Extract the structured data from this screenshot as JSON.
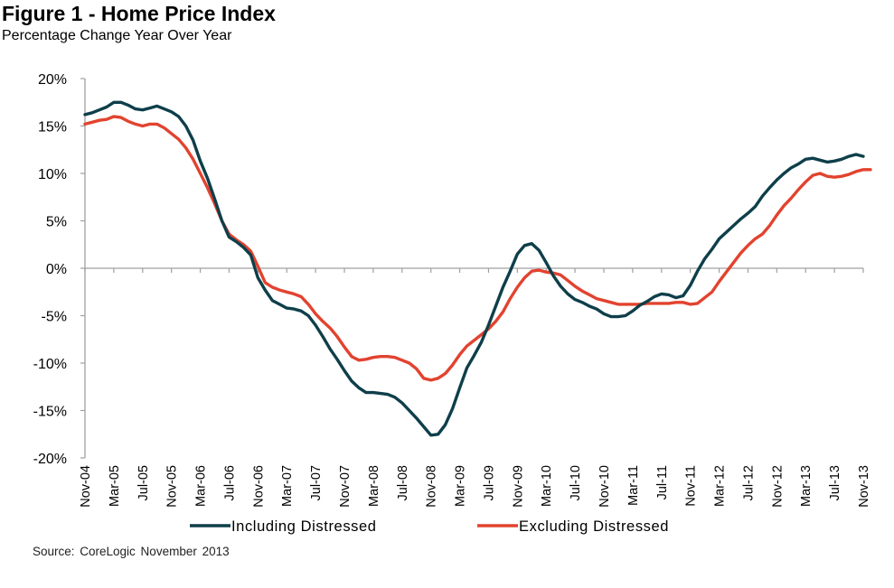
{
  "header": {
    "title": "Figure 1 - Home Price Index",
    "subtitle": "Percentage Change Year Over Year"
  },
  "footer": {
    "source": "Source: CoreLogic  November  2013"
  },
  "colors": {
    "including": "#0e3f4a",
    "excluding": "#e2432f",
    "axis": "#a0a0a0"
  },
  "chart_data": {
    "type": "line",
    "title": "Figure 1 - Home Price Index",
    "subtitle": "Percentage Change Year Over Year",
    "xlabel": "",
    "ylabel": "",
    "ylim": [
      -20,
      20
    ],
    "yticks": [
      20,
      15,
      10,
      5,
      0,
      -5,
      -10,
      -15,
      -20
    ],
    "ytick_labels": [
      "20%",
      "15%",
      "10%",
      "5%",
      "0%",
      "-5%",
      "-10%",
      "-15%",
      "-20%"
    ],
    "x_start": "Nov-04",
    "x_end": "Nov-13",
    "x_frequency": "monthly",
    "xtick_labels": [
      "Nov-04",
      "Mar-05",
      "Jul-05",
      "Nov-05",
      "Mar-06",
      "Jul-06",
      "Nov-06",
      "Mar-07",
      "Jul-07",
      "Nov-07",
      "Mar-08",
      "Jul-08",
      "Nov-08",
      "Mar-09",
      "Jul-09",
      "Nov-09",
      "Mar-10",
      "Jul-10",
      "Nov-10",
      "Mar-11",
      "Jul-11",
      "Nov-11",
      "Mar-12",
      "Jul-12",
      "Nov-12",
      "Mar-13",
      "Jul-13",
      "Nov-13"
    ],
    "grid": false,
    "legend_position": "bottom",
    "series": [
      {
        "name": "Including Distressed",
        "color": "#0e3f4a",
        "values": [
          16.2,
          16.4,
          16.7,
          17.0,
          17.5,
          17.5,
          17.2,
          16.8,
          16.7,
          16.9,
          17.1,
          16.8,
          16.5,
          16.0,
          15.0,
          13.5,
          11.3,
          9.5,
          7.3,
          5.0,
          3.3,
          2.8,
          2.2,
          1.4,
          -1.0,
          -2.3,
          -3.4,
          -3.8,
          -4.2,
          -4.3,
          -4.5,
          -5.0,
          -6.0,
          -7.2,
          -8.5,
          -9.6,
          -10.8,
          -11.9,
          -12.6,
          -13.1,
          -13.1,
          -13.2,
          -13.3,
          -13.6,
          -14.2,
          -15.0,
          -15.8,
          -16.7,
          -17.6,
          -17.5,
          -16.5,
          -14.8,
          -12.6,
          -10.5,
          -9.2,
          -7.8,
          -6.0,
          -4.0,
          -2.0,
          -0.3,
          1.5,
          2.4,
          2.6,
          1.9,
          0.6,
          -0.8,
          -1.9,
          -2.7,
          -3.3,
          -3.6,
          -4.0,
          -4.3,
          -4.8,
          -5.1,
          -5.1,
          -5.0,
          -4.5,
          -3.9,
          -3.5,
          -3.0,
          -2.7,
          -2.8,
          -3.1,
          -2.9,
          -1.8,
          -0.3,
          1.0,
          2.0,
          3.1,
          3.8,
          4.5,
          5.2,
          5.8,
          6.5,
          7.6,
          8.5,
          9.3,
          10.0,
          10.6,
          11.0,
          11.5,
          11.6,
          11.4,
          11.2,
          11.3,
          11.5,
          11.8,
          12.0,
          11.8
        ]
      },
      {
        "name": "Excluding Distressed",
        "color": "#e2432f",
        "values": [
          15.2,
          15.4,
          15.6,
          15.7,
          16.0,
          15.9,
          15.5,
          15.2,
          15.0,
          15.2,
          15.2,
          14.8,
          14.2,
          13.6,
          12.7,
          11.5,
          10.0,
          8.5,
          6.8,
          5.0,
          3.6,
          3.0,
          2.5,
          1.8,
          0.2,
          -1.5,
          -2.0,
          -2.3,
          -2.5,
          -2.7,
          -3.0,
          -3.8,
          -4.8,
          -5.6,
          -6.3,
          -7.2,
          -8.3,
          -9.3,
          -9.7,
          -9.6,
          -9.4,
          -9.3,
          -9.3,
          -9.4,
          -9.7,
          -10.0,
          -10.6,
          -11.6,
          -11.8,
          -11.6,
          -11.1,
          -10.2,
          -9.1,
          -8.2,
          -7.6,
          -7.0,
          -6.4,
          -5.6,
          -4.6,
          -3.2,
          -2.0,
          -1.0,
          -0.3,
          -0.2,
          -0.4,
          -0.5,
          -0.7,
          -1.3,
          -1.9,
          -2.4,
          -2.8,
          -3.2,
          -3.4,
          -3.6,
          -3.8,
          -3.8,
          -3.8,
          -3.8,
          -3.7,
          -3.7,
          -3.7,
          -3.7,
          -3.6,
          -3.6,
          -3.8,
          -3.7,
          -3.1,
          -2.5,
          -1.4,
          -0.4,
          0.6,
          1.6,
          2.4,
          3.1,
          3.6,
          4.5,
          5.6,
          6.6,
          7.4,
          8.3,
          9.1,
          9.8,
          10.0,
          9.7,
          9.6,
          9.7,
          9.9,
          10.2,
          10.4,
          10.4
        ]
      }
    ]
  }
}
